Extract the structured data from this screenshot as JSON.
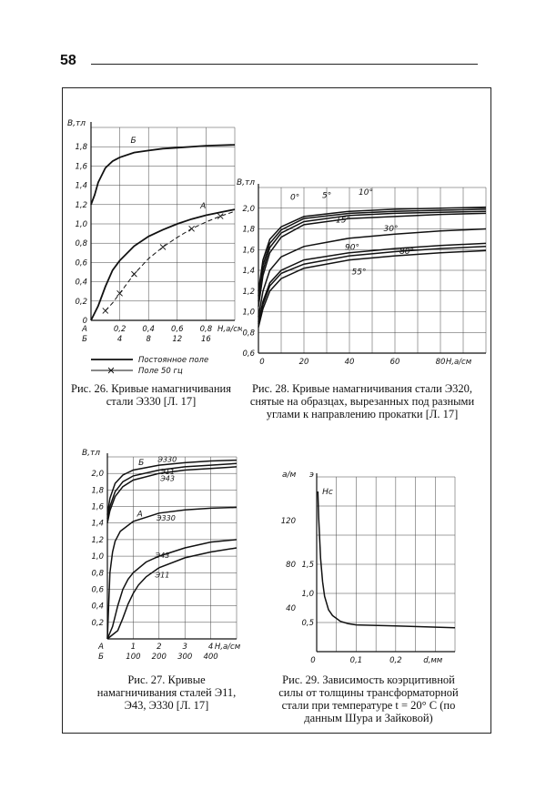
{
  "page": {
    "number": "58"
  },
  "fig26": {
    "caption": "Рис. 26. Кривые намагничивания стали Э330 [Л. 17]",
    "legend_const": "Постоянное поле",
    "legend_ac": "Поле 50 гц",
    "chart_data": {
      "type": "line",
      "title": "",
      "ylabel": "B,тл",
      "xlabel": "H,а/см",
      "ylim": [
        0,
        2.0
      ],
      "y_ticks": [
        "0",
        "0,2",
        "0,4",
        "0,6",
        "0,8",
        "1,0",
        "1,2",
        "1,4",
        "1,6",
        "1,8"
      ],
      "x_scale_A": {
        "label": "A",
        "ticks": [
          "0,2",
          "0,4",
          "0,6",
          "0,8"
        ],
        "xlim": [
          0,
          1.0
        ]
      },
      "x_scale_B": {
        "label": "Б",
        "ticks": [
          "4",
          "8",
          "12",
          "16"
        ],
        "xlim": [
          0,
          20
        ]
      },
      "series": [
        {
          "name": "Б",
          "scale": "Б",
          "x": [
            0,
            0.5,
            1,
            2,
            3,
            4,
            6,
            8,
            10,
            12,
            16,
            20
          ],
          "values": [
            1.2,
            1.3,
            1.43,
            1.58,
            1.65,
            1.69,
            1.74,
            1.76,
            1.78,
            1.79,
            1.81,
            1.82
          ]
        },
        {
          "name": "А",
          "scale": "A",
          "x": [
            0,
            0.05,
            0.1,
            0.15,
            0.2,
            0.3,
            0.4,
            0.5,
            0.6,
            0.7,
            0.8,
            0.9,
            1.0
          ],
          "values": [
            0,
            0.15,
            0.35,
            0.52,
            0.62,
            0.77,
            0.87,
            0.94,
            1.0,
            1.05,
            1.09,
            1.12,
            1.15
          ]
        },
        {
          "name": "А (50 гц)",
          "scale": "A",
          "x": [
            0.1,
            0.15,
            0.2,
            0.25,
            0.3,
            0.4,
            0.5,
            0.6,
            0.7,
            0.8,
            0.9,
            1.0
          ],
          "values": [
            0.1,
            0.18,
            0.28,
            0.38,
            0.48,
            0.64,
            0.76,
            0.86,
            0.95,
            1.02,
            1.08,
            1.13
          ]
        }
      ]
    }
  },
  "fig28": {
    "caption": "Рис. 28. Кривые намагничивания стали Э320, снятые на образцах, вырезанных под разными углами к направлению прокатки [Л. 17]",
    "chart_data": {
      "type": "line",
      "ylabel": "B,тл",
      "xlabel": "H,а/см",
      "xlim": [
        0,
        100
      ],
      "ylim": [
        0.6,
        2.2
      ],
      "x_ticks": [
        "0",
        "20",
        "40",
        "60",
        "80"
      ],
      "y_ticks": [
        "0,6",
        "0,8",
        "1,0",
        "1,2",
        "1,4",
        "1,6",
        "1,8",
        "2,0"
      ],
      "series": [
        {
          "name": "0°",
          "x": [
            0,
            2,
            5,
            10,
            20,
            40,
            60,
            80,
            100
          ],
          "values": [
            1.2,
            1.5,
            1.7,
            1.82,
            1.92,
            1.97,
            1.99,
            2.0,
            2.01
          ]
        },
        {
          "name": "5°",
          "x": [
            0,
            2,
            5,
            10,
            20,
            40,
            60,
            80,
            100
          ],
          "values": [
            1.15,
            1.45,
            1.66,
            1.79,
            1.9,
            1.95,
            1.97,
            1.98,
            1.99
          ]
        },
        {
          "name": "10°",
          "x": [
            0,
            2,
            5,
            10,
            20,
            40,
            60,
            80,
            100
          ],
          "values": [
            1.1,
            1.4,
            1.62,
            1.76,
            1.87,
            1.93,
            1.95,
            1.96,
            1.97
          ]
        },
        {
          "name": "15°",
          "x": [
            0,
            2,
            5,
            10,
            20,
            40,
            60,
            80,
            100
          ],
          "values": [
            1.05,
            1.35,
            1.57,
            1.72,
            1.84,
            1.9,
            1.92,
            1.94,
            1.95
          ]
        },
        {
          "name": "30°",
          "x": [
            0,
            2,
            5,
            10,
            20,
            40,
            60,
            80,
            100
          ],
          "values": [
            0.95,
            1.2,
            1.4,
            1.53,
            1.63,
            1.71,
            1.75,
            1.78,
            1.8
          ]
        },
        {
          "name": "90°",
          "x": [
            0,
            2,
            5,
            10,
            20,
            40,
            60,
            80,
            100
          ],
          "values": [
            0.9,
            1.1,
            1.28,
            1.4,
            1.5,
            1.57,
            1.61,
            1.64,
            1.66
          ]
        },
        {
          "name": "80°",
          "x": [
            0,
            2,
            5,
            10,
            20,
            40,
            60,
            80,
            100
          ],
          "values": [
            0.88,
            1.07,
            1.25,
            1.37,
            1.46,
            1.54,
            1.58,
            1.61,
            1.63
          ]
        },
        {
          "name": "55°",
          "x": [
            0,
            2,
            5,
            10,
            20,
            40,
            60,
            80,
            100
          ],
          "values": [
            0.85,
            1.03,
            1.2,
            1.32,
            1.42,
            1.5,
            1.54,
            1.57,
            1.59
          ]
        }
      ]
    }
  },
  "fig27": {
    "caption": "Рис. 27. Кривые намагничивания сталей Э11, Э43, Э330 [Л. 17]",
    "chart_data": {
      "type": "line",
      "ylabel": "B,тл",
      "xlabel": "H,а/см",
      "ylim": [
        0,
        2.2
      ],
      "y_ticks": [
        "0,2",
        "0,4",
        "0,6",
        "0,8",
        "1,0",
        "1,2",
        "1,4",
        "1,6",
        "1,8",
        "2,0"
      ],
      "x_scale_A": {
        "label": "A",
        "ticks": [
          "1",
          "2",
          "3",
          "4"
        ],
        "xlim": [
          0,
          5
        ]
      },
      "x_scale_B": {
        "label": "Б",
        "ticks": [
          "100",
          "200",
          "300",
          "400"
        ],
        "xlim": [
          0,
          500
        ]
      },
      "curve_labels": {
        "group_A": "А",
        "group_B": "Б"
      },
      "series": [
        {
          "name": "Э330 (Б)",
          "scale": "Б",
          "x": [
            0,
            10,
            30,
            60,
            100,
            200,
            300,
            400,
            500
          ],
          "values": [
            1.5,
            1.7,
            1.88,
            1.98,
            2.04,
            2.1,
            2.13,
            2.15,
            2.16
          ]
        },
        {
          "name": "Э11 (Б)",
          "scale": "Б",
          "x": [
            0,
            10,
            30,
            60,
            100,
            200,
            300,
            400,
            500
          ],
          "values": [
            1.45,
            1.6,
            1.78,
            1.9,
            1.97,
            2.04,
            2.08,
            2.1,
            2.12
          ]
        },
        {
          "name": "Э43 (Б)",
          "scale": "Б",
          "x": [
            0,
            10,
            30,
            60,
            100,
            200,
            300,
            400,
            500
          ],
          "values": [
            1.4,
            1.55,
            1.72,
            1.84,
            1.92,
            2.0,
            2.04,
            2.06,
            2.08
          ]
        },
        {
          "name": "Э330 (А)",
          "scale": "A",
          "x": [
            0,
            0.05,
            0.1,
            0.2,
            0.3,
            0.5,
            1,
            2,
            3,
            4,
            5
          ],
          "values": [
            0,
            0.4,
            0.8,
            1.05,
            1.18,
            1.3,
            1.42,
            1.52,
            1.56,
            1.58,
            1.59
          ]
        },
        {
          "name": "Э43 (А)",
          "scale": "A",
          "x": [
            0,
            0.2,
            0.4,
            0.6,
            0.8,
            1,
            1.5,
            2,
            3,
            4,
            5
          ],
          "values": [
            0,
            0.15,
            0.4,
            0.6,
            0.72,
            0.8,
            0.93,
            1.0,
            1.1,
            1.17,
            1.2
          ]
        },
        {
          "name": "Э11 (А)",
          "scale": "A",
          "x": [
            0,
            0.4,
            0.6,
            0.8,
            1.0,
            1.2,
            1.5,
            2,
            3,
            4,
            5
          ],
          "values": [
            0,
            0.1,
            0.25,
            0.42,
            0.55,
            0.65,
            0.75,
            0.86,
            0.98,
            1.05,
            1.1
          ]
        }
      ]
    }
  },
  "fig29": {
    "caption": "Рис. 29. Зависимость коэрцитивной силы от толщины трансформаторной стали при температуре t = 20° С (по данным Шура и Зайковой)",
    "chart_data": {
      "type": "line",
      "ylabel_left": "а/м",
      "ylabel_right": "э",
      "curve_label": "Hс",
      "xlabel": "d,мм",
      "xlim": [
        0,
        0.35
      ],
      "ylim": [
        0,
        3
      ],
      "x_ticks": [
        "0",
        "0,1",
        "0,2"
      ],
      "y_ticks_left": [
        "40",
        "80",
        "120"
      ],
      "y_ticks_right": [
        "0,5",
        "1,0",
        "1,5"
      ],
      "series": [
        {
          "name": "Hс",
          "x": [
            0.003,
            0.005,
            0.01,
            0.015,
            0.02,
            0.03,
            0.04,
            0.06,
            0.08,
            0.1,
            0.2,
            0.35
          ],
          "values": [
            2.75,
            2.3,
            1.6,
            1.2,
            0.95,
            0.72,
            0.62,
            0.52,
            0.48,
            0.46,
            0.44,
            0.41
          ]
        }
      ]
    }
  }
}
